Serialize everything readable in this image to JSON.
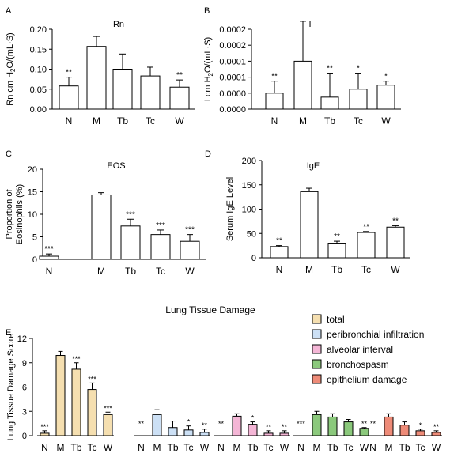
{
  "chart_data": [
    {
      "panel": "A",
      "type": "bar",
      "title": "Rn",
      "ylabel": "Rn cm H2O/(mL·S)",
      "categories": [
        "N",
        "M",
        "Tb",
        "Tc",
        "W"
      ],
      "values": [
        0.058,
        0.157,
        0.1,
        0.083,
        0.055
      ],
      "errors": [
        0.022,
        0.025,
        0.038,
        0.022,
        0.018
      ],
      "significance": [
        "**",
        "",
        "",
        "",
        "**"
      ],
      "ylim": [
        0,
        0.2
      ],
      "yticks": [
        "0.00",
        "0.05",
        "0.10",
        "0.15",
        "0.20"
      ],
      "bar_color": "#ffffff"
    },
    {
      "panel": "B",
      "type": "bar",
      "title": "I",
      "ylabel": "I cm H2O/(mL·S)",
      "categories": [
        "N",
        "M",
        "Tb",
        "Tc",
        "W"
      ],
      "values": [
        4e-05,
        0.00012,
        3e-05,
        5e-05,
        6e-05
      ],
      "errors": [
        3e-05,
        0.0001,
        6e-05,
        4e-05,
        1e-05
      ],
      "significance": [
        "**",
        "",
        "**",
        "*",
        "*"
      ],
      "ylim": [
        0,
        0.0002
      ],
      "yticks": [
        "0.0000",
        "0.0000",
        "0.0001",
        "0.0001",
        "0.0002",
        "0.0002"
      ],
      "bar_color": "#ffffff"
    },
    {
      "panel": "C",
      "type": "bar",
      "title": "EOS",
      "ylabel": "Proportion of Eosinophils (%)",
      "categories": [
        "N",
        "M",
        "Tb",
        "Tc",
        "W"
      ],
      "values": [
        0.7,
        14.3,
        7.4,
        5.5,
        4.0
      ],
      "errors": [
        0.5,
        0.5,
        1.5,
        1.0,
        1.5
      ],
      "significance": [
        "***",
        "",
        "***",
        "***",
        "***"
      ],
      "ylim": [
        0,
        20
      ],
      "yticks": [
        "0",
        "5",
        "10",
        "15",
        "20"
      ],
      "bar_color": "#ffffff"
    },
    {
      "panel": "D",
      "type": "bar",
      "title": "IgE",
      "ylabel": "Serum IgE Level",
      "categories": [
        "N",
        "M",
        "Tb",
        "Tc",
        "W"
      ],
      "values": [
        23,
        136,
        30,
        52,
        63
      ],
      "errors": [
        2,
        7,
        4,
        2,
        3
      ],
      "significance": [
        "**",
        "",
        "**",
        "**",
        "**"
      ],
      "ylim": [
        0,
        200
      ],
      "yticks": [
        "0",
        "50",
        "100",
        "150",
        "200"
      ],
      "bar_color": "#ffffff"
    },
    {
      "panel": "E",
      "type": "bar",
      "title": "Lung Tissue Damage",
      "ylabel": "Lung Tissue Damage Score",
      "categories": [
        "N",
        "M",
        "Tb",
        "Tc",
        "W"
      ],
      "ylim": [
        0,
        12
      ],
      "yticks": [
        "0",
        "3",
        "6",
        "9",
        "12"
      ],
      "legend_position": "top-right",
      "series": [
        {
          "name": "total",
          "color": "#f5dfb0",
          "values": [
            0.3,
            9.9,
            8.2,
            5.7,
            2.6
          ],
          "errors": [
            0.3,
            0.5,
            0.8,
            0.8,
            0.3
          ],
          "significance": [
            "***",
            "",
            "***",
            "***",
            "***"
          ]
        },
        {
          "name": "peribronchial infiltration",
          "color": "#cce0f5",
          "values": [
            0.0,
            2.6,
            1.0,
            0.7,
            0.4
          ],
          "errors": [
            0.0,
            0.6,
            0.8,
            0.5,
            0.4
          ],
          "significance": [
            "**",
            "",
            "",
            "*",
            "**"
          ]
        },
        {
          "name": "alveolar interval",
          "color": "#f4b6d6",
          "values": [
            0.0,
            2.4,
            1.4,
            0.3,
            0.3
          ],
          "errors": [
            0.0,
            0.3,
            0.3,
            0.3,
            0.3
          ],
          "significance": [
            "**",
            "",
            "*",
            "**",
            "**"
          ]
        },
        {
          "name": "bronchospasm",
          "color": "#8bc97c",
          "values": [
            0.0,
            2.6,
            2.3,
            1.7,
            0.9
          ],
          "errors": [
            0.0,
            0.4,
            0.4,
            0.3,
            0.1
          ],
          "significance": [
            "***",
            "",
            "",
            "",
            "**"
          ]
        },
        {
          "name": "epithelium damage",
          "color": "#ee8b78",
          "values": [
            0.0,
            2.3,
            1.3,
            0.6,
            0.4
          ],
          "errors": [
            0.0,
            0.4,
            0.4,
            0.2,
            0.2
          ],
          "significance": [
            "**",
            "",
            "",
            "*",
            "**"
          ]
        }
      ]
    }
  ]
}
